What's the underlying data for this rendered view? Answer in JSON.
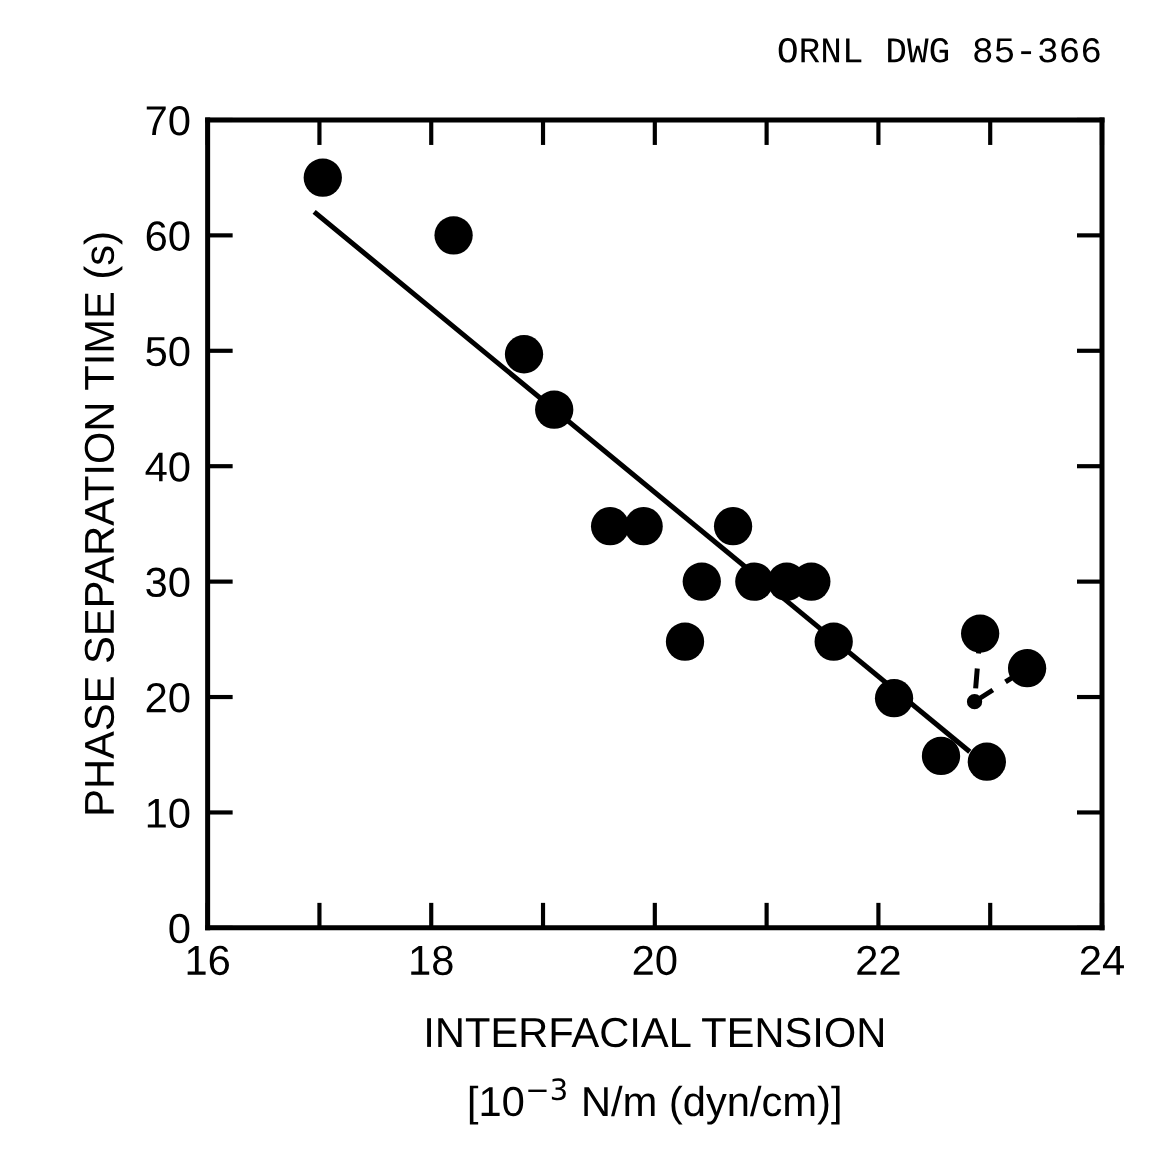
{
  "chart_data": {
    "type": "scatter",
    "xlabel": "INTERFACIAL TENSION\n[10$^{−3}$ N/m (dyn/cm)]",
    "ylabel": "PHASE SEPARATION TIME (s)",
    "annotations": [
      "ORNL DWG 85-366"
    ],
    "xlim": [
      16,
      24
    ],
    "ylim": [
      0,
      70
    ],
    "xticks": [
      {
        "value": 16,
        "label": "16"
      },
      {
        "value": 17,
        "label": null
      },
      {
        "value": 18,
        "label": "18"
      },
      {
        "value": 19,
        "label": null
      },
      {
        "value": 20,
        "label": "20"
      },
      {
        "value": 21,
        "label": null
      },
      {
        "value": 22,
        "label": "22"
      },
      {
        "value": 23,
        "label": null
      },
      {
        "value": 24,
        "label": "24"
      }
    ],
    "yticks": [
      0,
      10,
      20,
      30,
      40,
      50,
      60,
      70
    ],
    "grid": false,
    "legend": false,
    "series": [
      {
        "color": "#000000",
        "marker": "circle",
        "x": [
          17.03,
          18.2,
          18.83,
          19.1,
          19.6,
          19.9,
          20.7,
          20.42,
          20.89,
          21.18,
          21.4,
          20.27,
          21.6,
          22.14,
          22.56,
          22.97,
          22.91,
          23.33
        ],
        "values": [
          65,
          60,
          49.7,
          44.9,
          34.8,
          34.8,
          34.8,
          30,
          30,
          30,
          30,
          24.8,
          24.8,
          19.9,
          14.9,
          14.4,
          25.5,
          22.5
        ]
      },
      {
        "type": "line",
        "color": "#000000",
        "marker": "none",
        "line_style": "solid",
        "x": [
          16.97,
          22.8
        ],
        "values": [
          61.9,
          15.4
        ]
      },
      {
        "type": "line",
        "color": "#000000",
        "marker": "circle",
        "line_style": "dashed",
        "x": [
          22.91,
          22.86,
          23.33
        ],
        "values": [
          25.5,
          19.6,
          22.5
        ]
      }
    ]
  }
}
